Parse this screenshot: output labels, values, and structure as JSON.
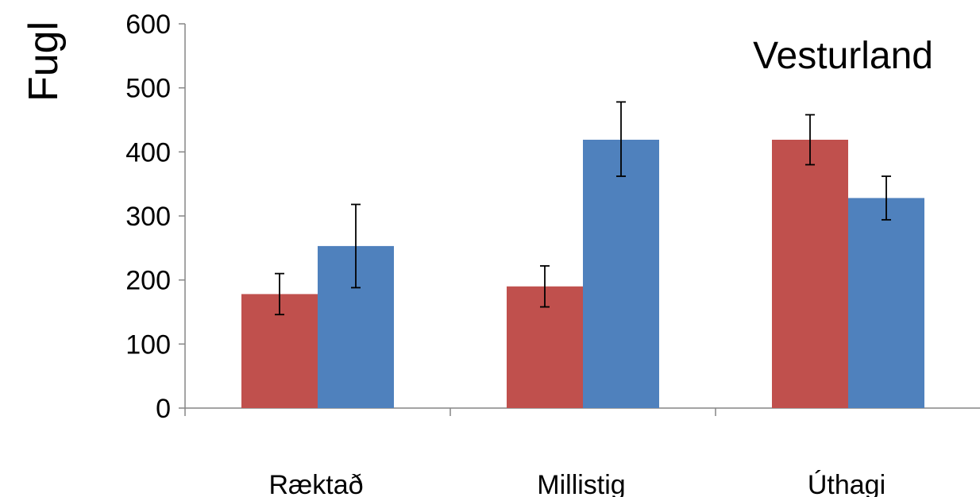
{
  "chart_data": {
    "type": "bar",
    "title": "Vesturland",
    "xlabel": "",
    "ylabel": "Fugl",
    "categories": [
      "Ræktað",
      "Millistig",
      "Úthagi"
    ],
    "ylim": [
      0,
      600
    ],
    "yticks": [
      0,
      100,
      200,
      300,
      400,
      500,
      600
    ],
    "grid": false,
    "legend": "none",
    "series": [
      {
        "color": "#c0504d",
        "values": [
          178,
          190,
          419
        ],
        "error_low": [
          146,
          158,
          380
        ],
        "error_high": [
          210,
          222,
          458
        ]
      },
      {
        "color": "#4f81bd",
        "values": [
          253,
          419,
          328
        ],
        "error_low": [
          188,
          362,
          294
        ],
        "error_high": [
          318,
          478,
          362
        ]
      }
    ]
  }
}
